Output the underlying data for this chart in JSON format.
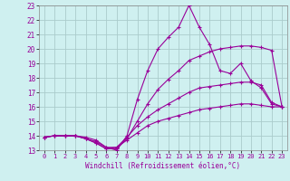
{
  "xlabel": "Windchill (Refroidissement éolien,°C)",
  "xlim": [
    -0.5,
    23.5
  ],
  "ylim": [
    13,
    23
  ],
  "xticks": [
    0,
    1,
    2,
    3,
    4,
    5,
    6,
    7,
    8,
    9,
    10,
    11,
    12,
    13,
    14,
    15,
    16,
    17,
    18,
    19,
    20,
    21,
    22,
    23
  ],
  "yticks": [
    13,
    14,
    15,
    16,
    17,
    18,
    19,
    20,
    21,
    22,
    23
  ],
  "bg_color": "#cff0f0",
  "grid_color": "#aacccc",
  "line_color": "#990099",
  "lines": [
    {
      "x": [
        0,
        1,
        2,
        3,
        4,
        5,
        6,
        7,
        8,
        9,
        10,
        11,
        12,
        13,
        14,
        15,
        16,
        17,
        18,
        19,
        20,
        21,
        22,
        23
      ],
      "y": [
        13.9,
        14.0,
        14.0,
        14.0,
        13.9,
        13.7,
        13.2,
        13.0,
        14.0,
        16.5,
        18.5,
        20.0,
        20.8,
        21.5,
        23.0,
        21.5,
        20.3,
        18.5,
        18.3,
        19.0,
        17.8,
        17.3,
        16.2,
        16.0
      ]
    },
    {
      "x": [
        0,
        1,
        2,
        3,
        4,
        5,
        6,
        7,
        8,
        9,
        10,
        11,
        12,
        13,
        14,
        15,
        16,
        17,
        18,
        19,
        20,
        21,
        22,
        23
      ],
      "y": [
        13.9,
        14.0,
        14.0,
        14.0,
        13.8,
        13.5,
        13.1,
        13.1,
        13.8,
        15.0,
        16.2,
        17.2,
        17.9,
        18.5,
        19.2,
        19.5,
        19.8,
        20.0,
        20.1,
        20.2,
        20.2,
        20.1,
        19.9,
        16.0
      ]
    },
    {
      "x": [
        0,
        1,
        2,
        3,
        4,
        5,
        6,
        7,
        8,
        9,
        10,
        11,
        12,
        13,
        14,
        15,
        16,
        17,
        18,
        19,
        20,
        21,
        22,
        23
      ],
      "y": [
        13.9,
        14.0,
        14.0,
        14.0,
        13.8,
        13.5,
        13.1,
        13.2,
        13.9,
        14.7,
        15.3,
        15.8,
        16.2,
        16.6,
        17.0,
        17.3,
        17.4,
        17.5,
        17.6,
        17.7,
        17.7,
        17.5,
        16.3,
        16.0
      ]
    },
    {
      "x": [
        0,
        1,
        2,
        3,
        4,
        5,
        6,
        7,
        8,
        9,
        10,
        11,
        12,
        13,
        14,
        15,
        16,
        17,
        18,
        19,
        20,
        21,
        22,
        23
      ],
      "y": [
        13.9,
        14.0,
        14.0,
        14.0,
        13.8,
        13.6,
        13.2,
        13.2,
        13.7,
        14.2,
        14.7,
        15.0,
        15.2,
        15.4,
        15.6,
        15.8,
        15.9,
        16.0,
        16.1,
        16.2,
        16.2,
        16.1,
        16.0,
        16.0
      ]
    }
  ]
}
